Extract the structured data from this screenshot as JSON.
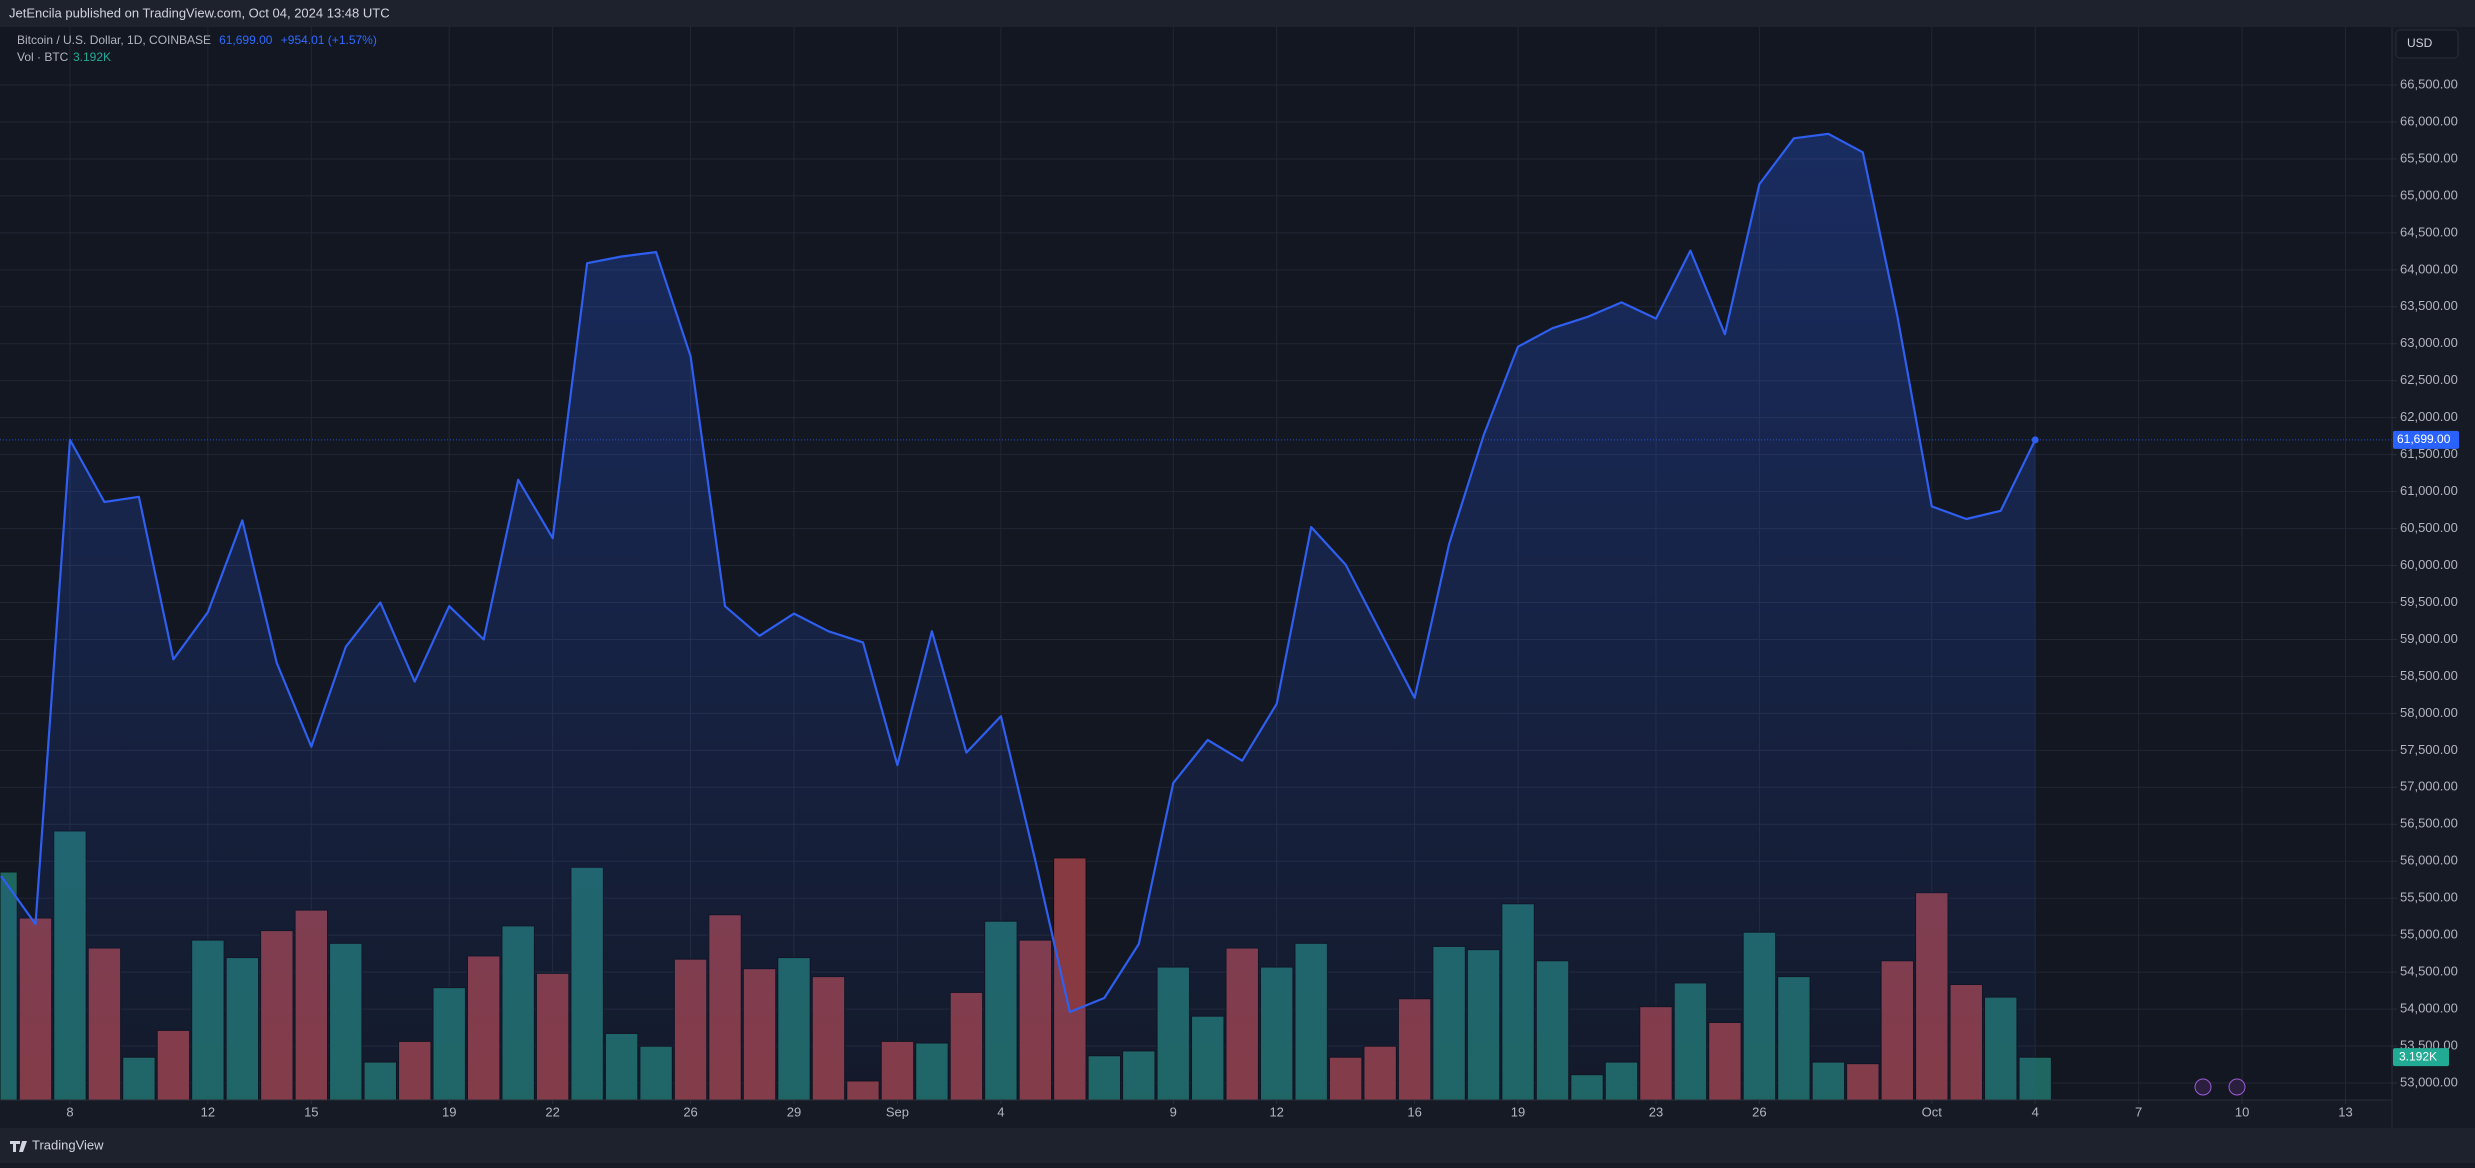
{
  "chart_data": {
    "type": "line",
    "header": "JetEncila published on TradingView.com, Oct 04, 2024 13:48 UTC",
    "symbol": "Bitcoin / U.S. Dollar, 1D, COINBASE",
    "last_price_label": "61,699.00",
    "change_label": "+954.01 (+1.57%)",
    "volume_title": "Vol · BTC",
    "currency": "USD",
    "brand": "TradingView",
    "x": [
      "2024-08-06",
      "2024-08-07",
      "2024-08-08",
      "2024-08-09",
      "2024-08-10",
      "2024-08-11",
      "2024-08-12",
      "2024-08-13",
      "2024-08-14",
      "2024-08-15",
      "2024-08-16",
      "2024-08-17",
      "2024-08-18",
      "2024-08-19",
      "2024-08-20",
      "2024-08-21",
      "2024-08-22",
      "2024-08-23",
      "2024-08-24",
      "2024-08-25",
      "2024-08-26",
      "2024-08-27",
      "2024-08-28",
      "2024-08-29",
      "2024-08-30",
      "2024-08-31",
      "2024-09-01",
      "2024-09-02",
      "2024-09-03",
      "2024-09-04",
      "2024-09-05",
      "2024-09-06",
      "2024-09-07",
      "2024-09-08",
      "2024-09-09",
      "2024-09-10",
      "2024-09-11",
      "2024-09-12",
      "2024-09-13",
      "2024-09-14",
      "2024-09-15",
      "2024-09-16",
      "2024-09-17",
      "2024-09-18",
      "2024-09-19",
      "2024-09-20",
      "2024-09-21",
      "2024-09-22",
      "2024-09-23",
      "2024-09-24",
      "2024-09-25",
      "2024-09-26",
      "2024-09-27",
      "2024-09-28",
      "2024-09-29",
      "2024-09-30",
      "2024-10-01",
      "2024-10-02",
      "2024-10-03",
      "2024-10-04"
    ],
    "series": [
      {
        "name": "Bitcoin / U.S. Dollar",
        "color": "#2f5ff0",
        "values": [
          55800,
          55150,
          61700,
          60860,
          60930,
          58730,
          59370,
          60610,
          58680,
          57550,
          58900,
          59500,
          58430,
          59450,
          59000,
          61160,
          60370,
          64090,
          64180,
          64240,
          62830,
          59450,
          59050,
          59350,
          59110,
          58960,
          57300,
          59110,
          57470,
          57960,
          56010,
          53960,
          54150,
          54880,
          57060,
          57640,
          57360,
          58130,
          60520,
          60010,
          59110,
          58210,
          60290,
          61760,
          62960,
          63210,
          63360,
          63560,
          63340,
          64260,
          63130,
          65160,
          65780,
          65840,
          65590,
          63380,
          60800,
          60630,
          60740,
          61699
        ]
      },
      {
        "name": "Vol · BTC",
        "axis": "y2",
        "up_color": "#1f6560",
        "down_color": "#873a41",
        "values": [
          17000,
          13570,
          20060,
          11330,
          3190,
          5190,
          11920,
          10620,
          12630,
          14160,
          11680,
          2830,
          4370,
          8380,
          10740,
          12980,
          9440,
          17350,
          4960,
          4010,
          10500,
          13810,
          9790,
          10620,
          9200,
          1420,
          4370,
          4250,
          8020,
          13330,
          11920,
          18050,
          3300,
          3660,
          9910,
          6250,
          11330,
          9910,
          11680,
          3190,
          4010,
          7550,
          11450,
          11210,
          14630,
          10380,
          1890,
          2830,
          6960,
          8730,
          5780,
          12510,
          9200,
          2830,
          2710,
          10380,
          15460,
          8610,
          7670,
          3192
        ],
        "directions": [
          "up",
          "down",
          "up",
          "down",
          "up",
          "down",
          "up",
          "up",
          "down",
          "down",
          "up",
          "up",
          "down",
          "up",
          "down",
          "up",
          "down",
          "up",
          "up",
          "up",
          "down",
          "down",
          "down",
          "up",
          "down",
          "down",
          "down",
          "up",
          "down",
          "up",
          "down",
          "down",
          "up",
          "up",
          "up",
          "up",
          "down",
          "up",
          "up",
          "down",
          "down",
          "down",
          "up",
          "up",
          "up",
          "up",
          "up",
          "up",
          "down",
          "up",
          "down",
          "up",
          "up",
          "up",
          "down",
          "down",
          "down",
          "down",
          "up",
          "up"
        ],
        "last_label": "3.192K"
      }
    ],
    "xlim": [
      "2024-08-06",
      "2024-10-14"
    ],
    "xticks": [
      {
        "value": "2024-08-08",
        "label": "8"
      },
      {
        "value": "2024-08-12",
        "label": "12"
      },
      {
        "value": "2024-08-15",
        "label": "15"
      },
      {
        "value": "2024-08-19",
        "label": "19"
      },
      {
        "value": "2024-08-22",
        "label": "22"
      },
      {
        "value": "2024-08-26",
        "label": "26"
      },
      {
        "value": "2024-08-29",
        "label": "29"
      },
      {
        "value": "2024-09-01",
        "label": "Sep"
      },
      {
        "value": "2024-09-04",
        "label": "4"
      },
      {
        "value": "2024-09-09",
        "label": "9"
      },
      {
        "value": "2024-09-12",
        "label": "12"
      },
      {
        "value": "2024-09-16",
        "label": "16"
      },
      {
        "value": "2024-09-19",
        "label": "19"
      },
      {
        "value": "2024-09-23",
        "label": "23"
      },
      {
        "value": "2024-09-26",
        "label": "26"
      },
      {
        "value": "2024-10-01",
        "label": "Oct"
      },
      {
        "value": "2024-10-04",
        "label": "4"
      },
      {
        "value": "2024-10-07",
        "label": "7"
      },
      {
        "value": "2024-10-10",
        "label": "10"
      },
      {
        "value": "2024-10-13",
        "label": "13"
      }
    ],
    "ylim": [
      52770,
      67285
    ],
    "yticks": [
      {
        "value": 53000,
        "label": "53,000.00"
      },
      {
        "value": 53500,
        "label": "53,500.00"
      },
      {
        "value": 54000,
        "label": "54,000.00"
      },
      {
        "value": 54500,
        "label": "54,500.00"
      },
      {
        "value": 55000,
        "label": "55,000.00"
      },
      {
        "value": 55500,
        "label": "55,500.00"
      },
      {
        "value": 56000,
        "label": "56,000.00"
      },
      {
        "value": 56500,
        "label": "56,500.00"
      },
      {
        "value": 57000,
        "label": "57,000.00"
      },
      {
        "value": 57500,
        "label": "57,500.00"
      },
      {
        "value": 58000,
        "label": "58,000.00"
      },
      {
        "value": 58500,
        "label": "58,500.00"
      },
      {
        "value": 59000,
        "label": "59,000.00"
      },
      {
        "value": 59500,
        "label": "59,500.00"
      },
      {
        "value": 60000,
        "label": "60,000.00"
      },
      {
        "value": 60500,
        "label": "60,500.00"
      },
      {
        "value": 61000,
        "label": "61,000.00"
      },
      {
        "value": 61500,
        "label": "61,500.00"
      },
      {
        "value": 62000,
        "label": "62,000.00"
      },
      {
        "value": 62500,
        "label": "62,500.00"
      },
      {
        "value": 63000,
        "label": "63,000.00"
      },
      {
        "value": 63500,
        "label": "63,500.00"
      },
      {
        "value": 64000,
        "label": "64,000.00"
      },
      {
        "value": 64500,
        "label": "64,500.00"
      },
      {
        "value": 65000,
        "label": "65,000.00"
      },
      {
        "value": 65500,
        "label": "65,500.00"
      },
      {
        "value": 66000,
        "label": "66,000.00"
      },
      {
        "value": 66500,
        "label": "66,500.00"
      }
    ],
    "y2lim": [
      0,
      80000
    ],
    "grid": true
  }
}
